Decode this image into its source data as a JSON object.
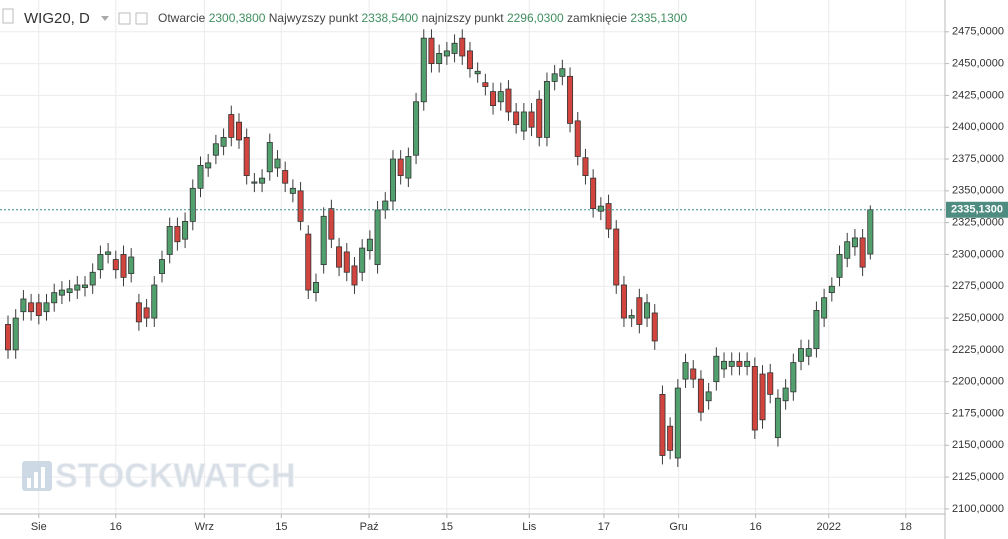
{
  "chart_data": {
    "type": "candlestick",
    "title": "WIG20, D",
    "ohlc_header": [
      {
        "label": "Otwarcie",
        "value": "2300,3800"
      },
      {
        "label": "Najwyzszy punkt",
        "value": "2338,5400"
      },
      {
        "label": "najnizszy punkt",
        "value": "2296,0300"
      },
      {
        "label": "zamknięcie",
        "value": "2335,1300"
      }
    ],
    "watermark": "STOCKWATCH",
    "up_color": "#53a06f",
    "down_color": "#d2453f",
    "open": [
      2245,
      2225,
      2255,
      2262,
      2262,
      2255,
      2262,
      2268,
      2270,
      2272,
      2274,
      2276,
      2288,
      2300,
      2296,
      2300,
      2285,
      2262,
      2258,
      2250,
      2285,
      2300,
      2322,
      2312,
      2326,
      2352,
      2368,
      2378,
      2385,
      2410,
      2404,
      2392,
      2356,
      2356,
      2365,
      2368,
      2366,
      2348,
      2350,
      2316,
      2270,
      2292,
      2336,
      2306,
      2302,
      2291,
      2286,
      2303,
      2292,
      2335,
      2342,
      2375,
      2360,
      2378,
      2420,
      2470,
      2450,
      2456,
      2458,
      2470,
      2460,
      2442,
      2435,
      2428,
      2420,
      2430,
      2412,
      2397,
      2412,
      2422,
      2392,
      2436,
      2440,
      2440,
      2405,
      2376,
      2360,
      2334,
      2340,
      2320,
      2276,
      2250,
      2266,
      2250,
      2254,
      2190,
      2165,
      2140,
      2202,
      2210,
      2202,
      2185,
      2200,
      2210,
      2212,
      2216,
      2212,
      2212,
      2206,
      2207,
      2156,
      2185,
      2192,
      2216,
      2220,
      2226,
      2250,
      2270,
      2282,
      2297,
      2306,
      2313,
      2300.38
    ],
    "high": [
      2252,
      2257,
      2272,
      2269,
      2269,
      2269,
      2277,
      2279,
      2280,
      2283,
      2283,
      2293,
      2307,
      2309,
      2303,
      2307,
      2305,
      2269,
      2265,
      2283,
      2303,
      2329,
      2329,
      2333,
      2359,
      2377,
      2379,
      2394,
      2399,
      2417,
      2411,
      2399,
      2364,
      2367,
      2395,
      2382,
      2373,
      2359,
      2357,
      2323,
      2285,
      2337,
      2343,
      2313,
      2309,
      2298,
      2312,
      2319,
      2342,
      2349,
      2382,
      2382,
      2384,
      2427,
      2477,
      2477,
      2465,
      2467,
      2473,
      2477,
      2467,
      2451,
      2442,
      2435,
      2435,
      2437,
      2419,
      2419,
      2419,
      2429,
      2443,
      2449,
      2453,
      2447,
      2412,
      2383,
      2367,
      2345,
      2347,
      2327,
      2283,
      2257,
      2273,
      2269,
      2261,
      2197,
      2172,
      2202,
      2222,
      2217,
      2209,
      2199,
      2227,
      2223,
      2223,
      2223,
      2223,
      2219,
      2213,
      2214,
      2194,
      2202,
      2222,
      2233,
      2233,
      2263,
      2273,
      2282,
      2307,
      2317,
      2320,
      2320,
      2338.54
    ],
    "low": [
      2218,
      2218,
      2248,
      2248,
      2245,
      2248,
      2255,
      2261,
      2263,
      2265,
      2267,
      2269,
      2281,
      2293,
      2281,
      2275,
      2278,
      2240,
      2243,
      2243,
      2278,
      2293,
      2303,
      2305,
      2319,
      2345,
      2361,
      2371,
      2378,
      2385,
      2383,
      2355,
      2349,
      2349,
      2358,
      2361,
      2349,
      2341,
      2319,
      2265,
      2263,
      2285,
      2305,
      2283,
      2279,
      2269,
      2279,
      2296,
      2285,
      2328,
      2335,
      2355,
      2353,
      2371,
      2413,
      2443,
      2443,
      2449,
      2451,
      2449,
      2439,
      2435,
      2425,
      2410,
      2413,
      2405,
      2395,
      2390,
      2393,
      2385,
      2385,
      2429,
      2433,
      2396,
      2370,
      2355,
      2329,
      2327,
      2313,
      2269,
      2243,
      2243,
      2238,
      2243,
      2225,
      2135,
      2139,
      2133,
      2195,
      2195,
      2169,
      2178,
      2193,
      2203,
      2205,
      2205,
      2205,
      2155,
      2163,
      2183,
      2149,
      2178,
      2185,
      2209,
      2213,
      2219,
      2243,
      2263,
      2275,
      2290,
      2299,
      2283,
      2296.03
    ],
    "close": [
      2225,
      2250,
      2265,
      2255,
      2252,
      2262,
      2270,
      2272,
      2273,
      2276,
      2276,
      2286,
      2300,
      2302,
      2288,
      2282,
      2298,
      2247,
      2250,
      2276,
      2296,
      2322,
      2310,
      2326,
      2352,
      2370,
      2372,
      2387,
      2392,
      2392,
      2390,
      2362,
      2357,
      2360,
      2388,
      2375,
      2356,
      2352,
      2326,
      2272,
      2278,
      2330,
      2312,
      2290,
      2286,
      2276,
      2305,
      2312,
      2335,
      2342,
      2375,
      2362,
      2377,
      2420,
      2470,
      2450,
      2458,
      2460,
      2466,
      2456,
      2446,
      2444,
      2432,
      2417,
      2428,
      2412,
      2402,
      2412,
      2400,
      2392,
      2436,
      2442,
      2446,
      2403,
      2377,
      2362,
      2336,
      2338,
      2320,
      2276,
      2250,
      2252,
      2245,
      2262,
      2232,
      2142,
      2146,
      2195,
      2215,
      2202,
      2176,
      2192,
      2220,
      2216,
      2216,
      2212,
      2216,
      2162,
      2170,
      2190,
      2187,
      2195,
      2215,
      2226,
      2226,
      2256,
      2266,
      2275,
      2300,
      2310,
      2313,
      2290,
      2335.13
    ],
    "xticks": [
      {
        "value": 4,
        "label": "Sie"
      },
      {
        "value": 14,
        "label": "16"
      },
      {
        "value": 25.5,
        "label": "Wrz"
      },
      {
        "value": 35.5,
        "label": "15"
      },
      {
        "value": 46.9,
        "label": "Paź"
      },
      {
        "value": 57,
        "label": "15"
      },
      {
        "value": 67.7,
        "label": "Lis"
      },
      {
        "value": 77.4,
        "label": "17"
      },
      {
        "value": 87.1,
        "label": "Gru"
      },
      {
        "value": 97.1,
        "label": "16"
      },
      {
        "value": 106.6,
        "label": "2022"
      },
      {
        "value": 116.6,
        "label": "18"
      }
    ],
    "xlim": [
      -1.04,
      121.7
    ],
    "ylim": [
      2096,
      2500
    ],
    "yticks": [
      {
        "value": 2100,
        "label": "2100,0000"
      },
      {
        "value": 2125,
        "label": "2125,0000"
      },
      {
        "value": 2150,
        "label": "2150,0000"
      },
      {
        "value": 2175,
        "label": "2175,0000"
      },
      {
        "value": 2200,
        "label": "2200,0000"
      },
      {
        "value": 2225,
        "label": "2225,0000"
      },
      {
        "value": 2250,
        "label": "2250,0000"
      },
      {
        "value": 2275,
        "label": "2275,0000"
      },
      {
        "value": 2300,
        "label": "2300,0000"
      },
      {
        "value": 2325,
        "label": "2325,0000"
      },
      {
        "value": 2350,
        "label": "2350,0000"
      },
      {
        "value": 2375,
        "label": "2375,0000"
      },
      {
        "value": 2400,
        "label": "2400,0000"
      },
      {
        "value": 2425,
        "label": "2425,0000"
      },
      {
        "value": 2450,
        "label": "2450,0000"
      },
      {
        "value": 2475,
        "label": "2475,0000"
      }
    ],
    "grid": true
  }
}
